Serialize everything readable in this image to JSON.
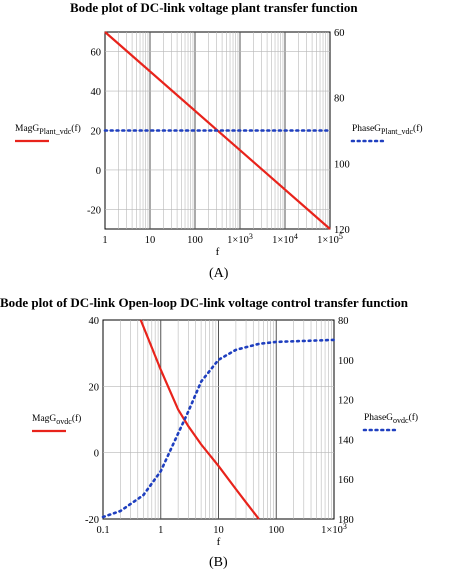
{
  "chart_data": [
    {
      "type": "line",
      "title": "Bode plot of DC-link voltage plant transfer function",
      "caption": "(A)",
      "xlabel": "f",
      "xscale": "log",
      "xlim": [
        1,
        100000
      ],
      "x_ticks": [
        {
          "v": 1,
          "base": "1"
        },
        {
          "v": 10,
          "base": "10"
        },
        {
          "v": 100,
          "base": "100"
        },
        {
          "v": 1000,
          "base": "1×10",
          "exp": "3"
        },
        {
          "v": 10000,
          "base": "1×10",
          "exp": "4"
        },
        {
          "v": 100000,
          "base": "1×10",
          "exp": "5"
        }
      ],
      "ylim_left": [
        -30,
        70
      ],
      "y_ticks_left": [
        -20,
        0,
        20,
        40,
        60
      ],
      "ylim_right": [
        60,
        120
      ],
      "y_ticks_right": [
        60,
        80,
        100,
        120
      ],
      "right_axis_inverted": true,
      "grid": true,
      "series": [
        {
          "axis": "left",
          "style": "solid",
          "color": "#e8231b",
          "label_main": "MagG",
          "label_sub": "Plant_vdc",
          "label_arg": "(f)",
          "x": [
            1,
            100000
          ],
          "y": [
            70,
            -30
          ]
        },
        {
          "axis": "right",
          "style": "dotted",
          "color": "#1f3fbf",
          "label_main": "PhaseG",
          "label_sub": "Plant_vdc",
          "label_arg": "(f)",
          "x": [
            1,
            100000
          ],
          "y": [
            90,
            90
          ]
        }
      ]
    },
    {
      "type": "line",
      "title": "Bode plot of DC-link  Open-loop DC-link voltage control transfer function",
      "caption": "(B)",
      "xlabel": "f",
      "xscale": "log",
      "xlim": [
        0.1,
        1000
      ],
      "x_ticks": [
        {
          "v": 0.1,
          "base": "0.1"
        },
        {
          "v": 1,
          "base": "1"
        },
        {
          "v": 10,
          "base": "10"
        },
        {
          "v": 100,
          "base": "100"
        },
        {
          "v": 1000,
          "base": "1×10",
          "exp": "3"
        }
      ],
      "ylim_left": [
        -20,
        40
      ],
      "y_ticks_left": [
        -20,
        0,
        20,
        40
      ],
      "ylim_right": [
        80,
        180
      ],
      "y_ticks_right": [
        80,
        100,
        120,
        140,
        160,
        180
      ],
      "right_axis_inverted": true,
      "grid": true,
      "series": [
        {
          "axis": "left",
          "style": "solid",
          "color": "#e8231b",
          "label_main": "MagG",
          "label_sub": "ovdc",
          "label_arg": "(f)",
          "x": [
            0.45,
            1,
            2,
            3,
            5,
            10,
            20,
            30,
            50
          ],
          "y": [
            40,
            25,
            13,
            8,
            2.5,
            -4,
            -11,
            -15,
            -20
          ]
        },
        {
          "axis": "right",
          "style": "dotted",
          "color": "#1f3fbf",
          "label_main": "PhaseG",
          "label_sub": "ovdc",
          "label_arg": "(f)",
          "x": [
            0.1,
            0.2,
            0.5,
            1,
            2,
            3,
            5,
            10,
            20,
            50,
            100,
            1000
          ],
          "y": [
            179,
            176,
            168,
            156,
            137,
            126,
            111,
            100,
            95,
            92,
            91,
            90
          ]
        }
      ]
    }
  ]
}
